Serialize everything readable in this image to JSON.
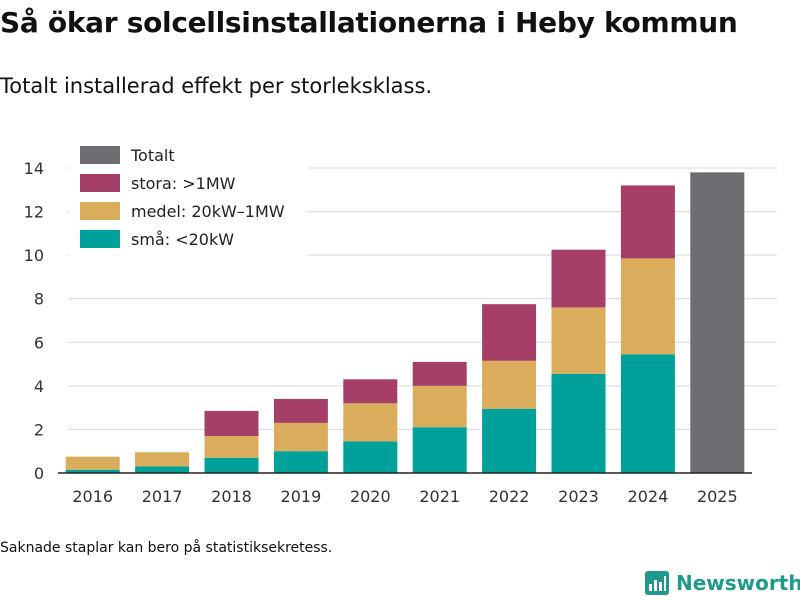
{
  "header": {
    "title": "Så ökar solcellsinstallationerna i Heby kommun",
    "subtitle": "Totalt installerad effekt per storleksklass."
  },
  "footer": {
    "note": "Saknade staplar kan bero på statistiksekretess.",
    "brand": "Newsworthy"
  },
  "colors": {
    "total": "#6d6d72",
    "large": "#a63f68",
    "medium": "#d9ad5b",
    "small": "#00a19a",
    "grid": "#d9d9d9",
    "brand": "#1f9a8a"
  },
  "chart_data": {
    "type": "bar",
    "stacked": true,
    "title": "Så ökar solcellsinstallationerna i Heby kommun",
    "subtitle": "Totalt installerad effekt per storleksklass.",
    "xlabel": "",
    "ylabel": "",
    "ylim": [
      0,
      14
    ],
    "yticks": [
      0,
      2,
      4,
      6,
      8,
      10,
      12,
      14
    ],
    "grid": true,
    "legend_position": "top-left",
    "categories": [
      "2016",
      "2017",
      "2018",
      "2019",
      "2020",
      "2021",
      "2022",
      "2023",
      "2024",
      "2025"
    ],
    "series": [
      {
        "name": "små: <20kW",
        "color_key": "small",
        "values": [
          0.15,
          0.3,
          0.7,
          1.0,
          1.45,
          2.1,
          2.95,
          4.55,
          5.45,
          null
        ]
      },
      {
        "name": "medel: 20kW–1MW",
        "color_key": "medium",
        "values": [
          0.6,
          0.65,
          1.0,
          1.3,
          1.75,
          1.9,
          2.2,
          3.05,
          4.4,
          null
        ]
      },
      {
        "name": "stora: >1MW",
        "color_key": "large",
        "values": [
          null,
          null,
          1.15,
          1.1,
          1.1,
          1.1,
          2.6,
          2.65,
          3.35,
          null
        ]
      },
      {
        "name": "Totalt",
        "color_key": "total",
        "values": [
          null,
          null,
          null,
          null,
          null,
          null,
          null,
          null,
          null,
          13.8
        ]
      }
    ],
    "legend_order": [
      "Totalt",
      "stora: >1MW",
      "medel: 20kW–1MW",
      "små: <20kW"
    ]
  }
}
